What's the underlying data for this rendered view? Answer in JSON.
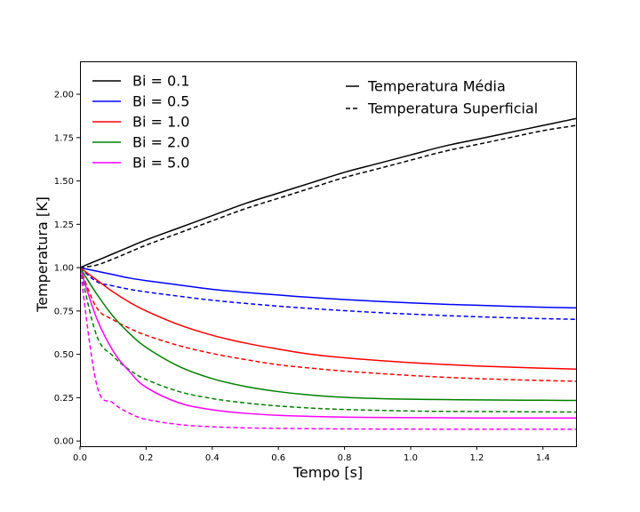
{
  "chart_data": {
    "type": "line",
    "title": "",
    "xlabel": "Tempo [s]",
    "ylabel": "Temperatura [K]",
    "xlim": [
      0,
      1.5
    ],
    "ylim": [
      -0.03,
      2.19
    ],
    "x_ticks": [
      "0.0",
      "0.2",
      "0.4",
      "0.6",
      "0.8",
      "1.0",
      "1.2",
      "1.4"
    ],
    "x_tick_values": [
      0,
      0.2,
      0.4,
      0.6,
      0.8,
      1.0,
      1.2,
      1.4
    ],
    "y_ticks": [
      "0.00",
      "0.25",
      "0.50",
      "0.75",
      "1.00",
      "1.25",
      "1.50",
      "1.75",
      "2.00"
    ],
    "y_tick_values": [
      0,
      0.25,
      0.5,
      0.75,
      1.0,
      1.25,
      1.5,
      1.75,
      2.0
    ],
    "grid": false,
    "legend_placement": "top-left",
    "style_legend_placement": "top-right",
    "style_legend": [
      {
        "label": "Temperatura Média",
        "dash": "solid"
      },
      {
        "label": "Temperatura Superficial",
        "dash": "dashed"
      }
    ],
    "x": [
      0,
      0.05,
      0.1,
      0.15,
      0.2,
      0.3,
      0.4,
      0.5,
      0.6,
      0.7,
      0.8,
      0.9,
      1.0,
      1.1,
      1.2,
      1.3,
      1.4,
      1.5
    ],
    "series": [
      {
        "name": "Bi = 0.1",
        "color": "#000000",
        "mean": [
          1.0,
          1.04,
          1.08,
          1.12,
          1.16,
          1.23,
          1.3,
          1.37,
          1.43,
          1.49,
          1.55,
          1.6,
          1.65,
          1.7,
          1.74,
          1.78,
          1.82,
          1.86
        ],
        "surface": [
          1.0,
          1.015,
          1.05,
          1.09,
          1.13,
          1.2,
          1.27,
          1.34,
          1.4,
          1.46,
          1.52,
          1.57,
          1.62,
          1.67,
          1.71,
          1.75,
          1.79,
          1.82
        ]
      },
      {
        "name": "Bi = 0.5",
        "color": "#0000ff",
        "mean": [
          1.0,
          0.98,
          0.96,
          0.94,
          0.925,
          0.9,
          0.875,
          0.857,
          0.842,
          0.828,
          0.816,
          0.806,
          0.797,
          0.789,
          0.783,
          0.777,
          0.772,
          0.768
        ],
        "surface": [
          1.0,
          0.92,
          0.895,
          0.875,
          0.86,
          0.835,
          0.812,
          0.794,
          0.778,
          0.764,
          0.752,
          0.741,
          0.732,
          0.724,
          0.717,
          0.711,
          0.706,
          0.702
        ]
      },
      {
        "name": "Bi = 1.0",
        "color": "#ff0000",
        "mean": [
          1.0,
          0.93,
          0.86,
          0.8,
          0.75,
          0.67,
          0.61,
          0.565,
          0.53,
          0.5,
          0.48,
          0.465,
          0.452,
          0.442,
          0.433,
          0.426,
          0.42,
          0.415
        ],
        "surface": [
          1.0,
          0.77,
          0.7,
          0.65,
          0.61,
          0.55,
          0.505,
          0.47,
          0.44,
          0.42,
          0.403,
          0.39,
          0.378,
          0.368,
          0.36,
          0.354,
          0.349,
          0.345
        ]
      },
      {
        "name": "Bi = 2.0",
        "color": "#008000",
        "mean": [
          1.0,
          0.85,
          0.72,
          0.62,
          0.54,
          0.43,
          0.36,
          0.315,
          0.285,
          0.265,
          0.252,
          0.245,
          0.241,
          0.239,
          0.237,
          0.236,
          0.235,
          0.234
        ],
        "surface": [
          1.0,
          0.61,
          0.49,
          0.41,
          0.355,
          0.285,
          0.245,
          0.22,
          0.202,
          0.19,
          0.182,
          0.177,
          0.173,
          0.171,
          0.17,
          0.169,
          0.168,
          0.167
        ]
      },
      {
        "name": "Bi = 5.0",
        "color": "#ff00ff",
        "mean": [
          1.0,
          0.71,
          0.52,
          0.4,
          0.31,
          0.22,
          0.18,
          0.16,
          0.148,
          0.142,
          0.138,
          0.136,
          0.135,
          0.134,
          0.133,
          0.133,
          0.133,
          0.133
        ],
        "surface": [
          1.0,
          0.33,
          0.22,
          0.16,
          0.125,
          0.095,
          0.082,
          0.076,
          0.073,
          0.071,
          0.07,
          0.069,
          0.069,
          0.068,
          0.068,
          0.068,
          0.068,
          0.068
        ]
      }
    ]
  }
}
